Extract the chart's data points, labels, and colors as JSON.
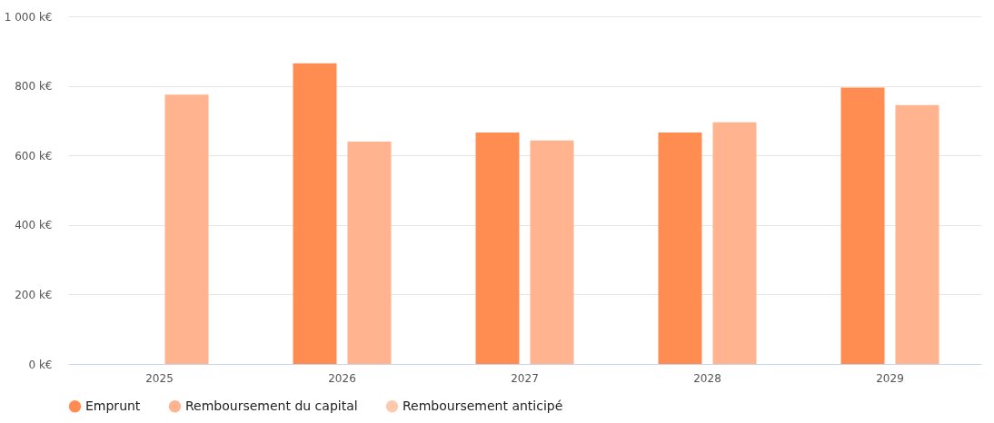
{
  "chart_data": {
    "type": "bar",
    "categories": [
      "2025",
      "2026",
      "2027",
      "2028",
      "2029"
    ],
    "series": [
      {
        "name": "Emprunt",
        "color": "#ff8c50",
        "values": [
          null,
          865,
          666,
          666,
          795
        ]
      },
      {
        "name": "Remboursement du capital",
        "color": "#ffb38e",
        "values": [
          775,
          640,
          643,
          695,
          745
        ]
      },
      {
        "name": "Remboursement anticipé",
        "color": "#ffc9ad",
        "values": [
          null,
          null,
          null,
          null,
          null
        ]
      }
    ],
    "ylim": [
      0,
      1000
    ],
    "yticks": [
      {
        "value": 0,
        "label": "0 k€"
      },
      {
        "value": 200,
        "label": "200 k€"
      },
      {
        "value": 400,
        "label": "400 k€"
      },
      {
        "value": 600,
        "label": "600 k€"
      },
      {
        "value": 800,
        "label": "800 k€"
      },
      {
        "value": 1000,
        "label": "1 000 k€"
      }
    ],
    "grid": "y",
    "legend": "bottom"
  }
}
